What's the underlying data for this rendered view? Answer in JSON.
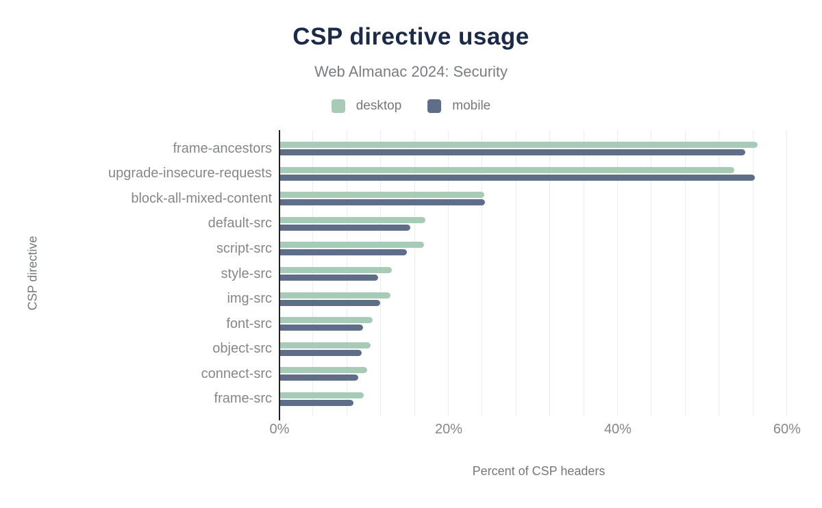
{
  "chart_data": {
    "type": "bar",
    "orientation": "horizontal",
    "title": "CSP directive usage",
    "subtitle": "Web Almanac 2024: Security",
    "xlabel": "Percent of CSP headers",
    "ylabel": "CSP directive",
    "legend_position": "top",
    "grid": "vertical-minor-gridlines",
    "gridline_step_pct": 4,
    "xlim": [
      0,
      61.3
    ],
    "x_ticks": [
      {
        "value": 0,
        "label": "0%"
      },
      {
        "value": 20,
        "label": "20%"
      },
      {
        "value": 40,
        "label": "40%"
      },
      {
        "value": 60,
        "label": "60%"
      }
    ],
    "categories": [
      "frame-ancestors",
      "upgrade-insecure-requests",
      "block-all-mixed-content",
      "default-src",
      "script-src",
      "style-src",
      "img-src",
      "font-src",
      "object-src",
      "connect-src",
      "frame-src"
    ],
    "series": [
      {
        "name": "desktop",
        "color": "#a8cbb8",
        "values": [
          56.4,
          53.7,
          24.1,
          17.2,
          17.0,
          13.2,
          13.0,
          10.9,
          10.7,
          10.3,
          9.9
        ]
      },
      {
        "name": "mobile",
        "color": "#5f6e88",
        "values": [
          55.0,
          56.1,
          24.2,
          15.4,
          15.0,
          11.6,
          11.8,
          9.8,
          9.6,
          9.2,
          8.7
        ]
      }
    ],
    "value_unit": "%"
  },
  "colors": {
    "title": "#1b2a49",
    "subtitle": "#7a7d80",
    "axis_line": "#1f2124",
    "gridline": "#ececee",
    "labels": "#84878a"
  }
}
